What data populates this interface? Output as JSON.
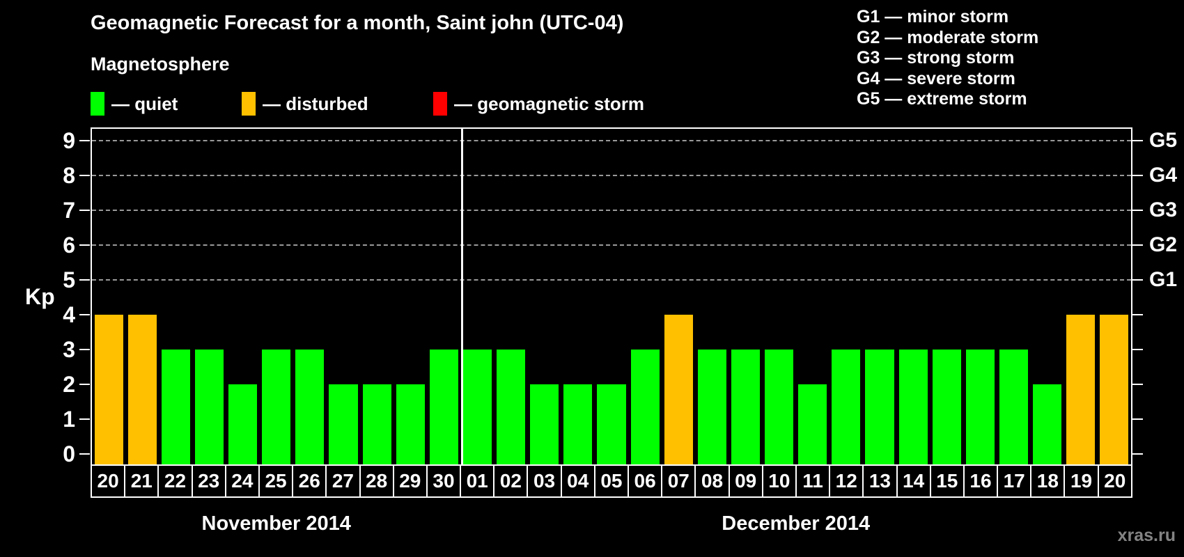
{
  "title": "Geomagnetic Forecast for a month, Saint john (UTC-04)",
  "subtitle": "Magnetosphere",
  "legend": {
    "items": [
      {
        "status": "quiet",
        "label": "— quiet",
        "color": "#00ff00"
      },
      {
        "status": "disturbed",
        "label": "— disturbed",
        "color": "#ffc000"
      },
      {
        "status": "storm",
        "label": "— geomagnetic storm",
        "color": "#ff0000"
      }
    ]
  },
  "g_scale_legend": [
    "G1 — minor storm",
    "G2 — moderate storm",
    "G3 — strong storm",
    "G4 — severe storm",
    "G5 — extreme storm"
  ],
  "watermark": "xras.ru",
  "chart_data": {
    "type": "bar",
    "ylabel": "Kp",
    "ylim": [
      0,
      9
    ],
    "yticks": [
      0,
      1,
      2,
      3,
      4,
      5,
      6,
      7,
      8,
      9
    ],
    "grid": "dashed horizontal gridlines at Kp 5-9",
    "legend_position": "top",
    "right_axis": [
      {
        "kp": 5,
        "label": "G1"
      },
      {
        "kp": 6,
        "label": "G2"
      },
      {
        "kp": 7,
        "label": "G3"
      },
      {
        "kp": 8,
        "label": "G4"
      },
      {
        "kp": 9,
        "label": "G5"
      }
    ],
    "status_colors": {
      "quiet": "#00ff00",
      "disturbed": "#ffc000",
      "storm": "#ff0000"
    },
    "months": [
      {
        "label": "November 2014",
        "days": [
          {
            "day": "20",
            "kp": 4,
            "status": "disturbed"
          },
          {
            "day": "21",
            "kp": 4,
            "status": "disturbed"
          },
          {
            "day": "22",
            "kp": 3,
            "status": "quiet"
          },
          {
            "day": "23",
            "kp": 3,
            "status": "quiet"
          },
          {
            "day": "24",
            "kp": 2,
            "status": "quiet"
          },
          {
            "day": "25",
            "kp": 3,
            "status": "quiet"
          },
          {
            "day": "26",
            "kp": 3,
            "status": "quiet"
          },
          {
            "day": "27",
            "kp": 2,
            "status": "quiet"
          },
          {
            "day": "28",
            "kp": 2,
            "status": "quiet"
          },
          {
            "day": "29",
            "kp": 2,
            "status": "quiet"
          },
          {
            "day": "30",
            "kp": 3,
            "status": "quiet"
          }
        ]
      },
      {
        "label": "December 2014",
        "days": [
          {
            "day": "01",
            "kp": 3,
            "status": "quiet"
          },
          {
            "day": "02",
            "kp": 3,
            "status": "quiet"
          },
          {
            "day": "03",
            "kp": 2,
            "status": "quiet"
          },
          {
            "day": "04",
            "kp": 2,
            "status": "quiet"
          },
          {
            "day": "05",
            "kp": 2,
            "status": "quiet"
          },
          {
            "day": "06",
            "kp": 3,
            "status": "quiet"
          },
          {
            "day": "07",
            "kp": 4,
            "status": "disturbed"
          },
          {
            "day": "08",
            "kp": 3,
            "status": "quiet"
          },
          {
            "day": "09",
            "kp": 3,
            "status": "quiet"
          },
          {
            "day": "10",
            "kp": 3,
            "status": "quiet"
          },
          {
            "day": "11",
            "kp": 2,
            "status": "quiet"
          },
          {
            "day": "12",
            "kp": 3,
            "status": "quiet"
          },
          {
            "day": "13",
            "kp": 3,
            "status": "quiet"
          },
          {
            "day": "14",
            "kp": 3,
            "status": "quiet"
          },
          {
            "day": "15",
            "kp": 3,
            "status": "quiet"
          },
          {
            "day": "16",
            "kp": 3,
            "status": "quiet"
          },
          {
            "day": "17",
            "kp": 3,
            "status": "quiet"
          },
          {
            "day": "18",
            "kp": 2,
            "status": "quiet"
          },
          {
            "day": "19",
            "kp": 4,
            "status": "disturbed"
          },
          {
            "day": "20",
            "kp": 4,
            "status": "disturbed"
          }
        ]
      }
    ]
  }
}
